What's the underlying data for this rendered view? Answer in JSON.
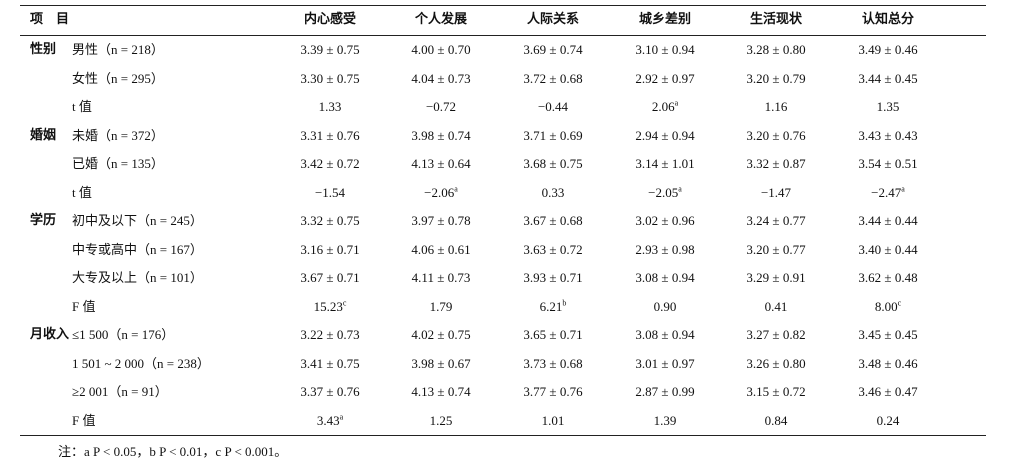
{
  "table": {
    "header": [
      "项　目",
      "内心感受",
      "个人发展",
      "人际关系",
      "城乡差别",
      "生活现状",
      "认知总分"
    ],
    "groups": [
      {
        "label": "性别",
        "rows": [
          {
            "label": "男性（n = 218）",
            "cells": [
              "3.39 ± 0.75",
              "4.00 ± 0.70",
              "3.69 ± 0.74",
              "3.10 ± 0.94",
              "3.28 ± 0.80",
              "3.49 ± 0.46"
            ]
          },
          {
            "label": "女性（n = 295）",
            "cells": [
              "3.30 ± 0.75",
              "4.04 ± 0.73",
              "3.72 ± 0.68",
              "2.92 ± 0.97",
              "3.20 ± 0.79",
              "3.44 ± 0.45"
            ]
          },
          {
            "label": "t 值",
            "cells": [
              "1.33",
              "−0.72",
              "−0.44",
              {
                "text": "2.06",
                "sup": "a"
              },
              "1.16",
              "1.35"
            ]
          }
        ]
      },
      {
        "label": "婚姻",
        "rows": [
          {
            "label": "未婚（n = 372）",
            "cells": [
              "3.31 ± 0.76",
              "3.98 ± 0.74",
              "3.71 ± 0.69",
              "2.94 ± 0.94",
              "3.20 ± 0.76",
              "3.43 ± 0.43"
            ]
          },
          {
            "label": "已婚（n = 135）",
            "cells": [
              "3.42 ± 0.72",
              "4.13 ± 0.64",
              "3.68 ± 0.75",
              "3.14 ± 1.01",
              "3.32 ± 0.87",
              "3.54 ± 0.51"
            ]
          },
          {
            "label": "t 值",
            "cells": [
              "−1.54",
              {
                "text": "−2.06",
                "sup": "a"
              },
              "0.33",
              {
                "text": "−2.05",
                "sup": "a"
              },
              "−1.47",
              {
                "text": "−2.47",
                "sup": "a"
              }
            ]
          }
        ]
      },
      {
        "label": "学历",
        "rows": [
          {
            "label": "初中及以下（n = 245）",
            "cells": [
              "3.32 ± 0.75",
              "3.97 ± 0.78",
              "3.67 ± 0.68",
              "3.02 ± 0.96",
              "3.24 ± 0.77",
              "3.44 ± 0.44"
            ]
          },
          {
            "label": "中专或高中（n = 167）",
            "cells": [
              "3.16 ± 0.71",
              "4.06 ± 0.61",
              "3.63 ± 0.72",
              "2.93 ± 0.98",
              "3.20 ± 0.77",
              "3.40 ± 0.44"
            ]
          },
          {
            "label": "大专及以上（n = 101）",
            "cells": [
              "3.67 ± 0.71",
              "4.11 ± 0.73",
              "3.93 ± 0.71",
              "3.08 ± 0.94",
              "3.29 ± 0.91",
              "3.62 ± 0.48"
            ]
          },
          {
            "label": "F 值",
            "cells": [
              {
                "text": "15.23",
                "sup": "c"
              },
              "1.79",
              {
                "text": "6.21",
                "sup": "b"
              },
              "0.90",
              "0.41",
              {
                "text": "8.00",
                "sup": "c"
              }
            ]
          }
        ]
      },
      {
        "label": "月收入",
        "rows": [
          {
            "label": "≤1 500（n = 176）",
            "cells": [
              "3.22 ± 0.73",
              "4.02 ± 0.75",
              "3.65 ± 0.71",
              "3.08 ± 0.94",
              "3.27 ± 0.82",
              "3.45 ± 0.45"
            ]
          },
          {
            "label": "1 501 ~ 2 000（n = 238）",
            "cells": [
              "3.41 ± 0.75",
              "3.98 ± 0.67",
              "3.73 ± 0.68",
              "3.01 ± 0.97",
              "3.26 ± 0.80",
              "3.48 ± 0.46"
            ]
          },
          {
            "label": "≥2 001（n = 91）",
            "cells": [
              "3.37 ± 0.76",
              "4.13 ± 0.74",
              "3.77 ± 0.76",
              "2.87 ± 0.99",
              "3.15 ± 0.72",
              "3.46 ± 0.47"
            ]
          },
          {
            "label": "F 值",
            "cells": [
              {
                "text": "3.43",
                "sup": "a"
              },
              "1.25",
              "1.01",
              "1.39",
              "0.84",
              "0.24"
            ]
          }
        ]
      }
    ],
    "note": "注：a P < 0.05，b P < 0.01，c P < 0.001。"
  }
}
